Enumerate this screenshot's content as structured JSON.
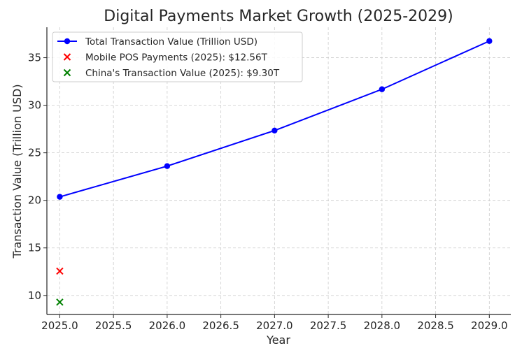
{
  "chart_data": {
    "type": "line",
    "title": "Digital Payments Market Growth (2025-2029)",
    "xlabel": "Year",
    "ylabel": "Transaction Value (Trillion USD)",
    "xlim": [
      2024.88,
      2029.2
    ],
    "ylim": [
      8.0,
      38.2
    ],
    "x_ticks": [
      2025.0,
      2025.5,
      2026.0,
      2026.5,
      2027.0,
      2027.5,
      2028.0,
      2028.5,
      2029.0
    ],
    "x_tick_labels": [
      "2025.0",
      "2025.5",
      "2026.0",
      "2026.5",
      "2027.0",
      "2027.5",
      "2028.0",
      "2028.5",
      "2029.0"
    ],
    "y_ticks": [
      10,
      15,
      20,
      25,
      30,
      35
    ],
    "y_tick_labels": [
      "10",
      "15",
      "20",
      "25",
      "30",
      "35"
    ],
    "grid": true,
    "legend_position": "top-left",
    "series": [
      {
        "name": "Total Transaction Value (Trillion USD)",
        "kind": "line",
        "marker": "circle",
        "color": "#0000ff",
        "x": [
          2025,
          2026,
          2027,
          2028,
          2029
        ],
        "y": [
          20.37,
          23.6,
          27.34,
          31.68,
          36.75
        ]
      },
      {
        "name": "Mobile POS Payments (2025): $12.56T",
        "kind": "scatter",
        "marker": "x",
        "color": "#ff0000",
        "x": [
          2025
        ],
        "y": [
          12.56
        ]
      },
      {
        "name": "China's Transaction Value (2025): $9.30T",
        "kind": "scatter",
        "marker": "x",
        "color": "#008000",
        "x": [
          2025
        ],
        "y": [
          9.3
        ]
      }
    ]
  }
}
